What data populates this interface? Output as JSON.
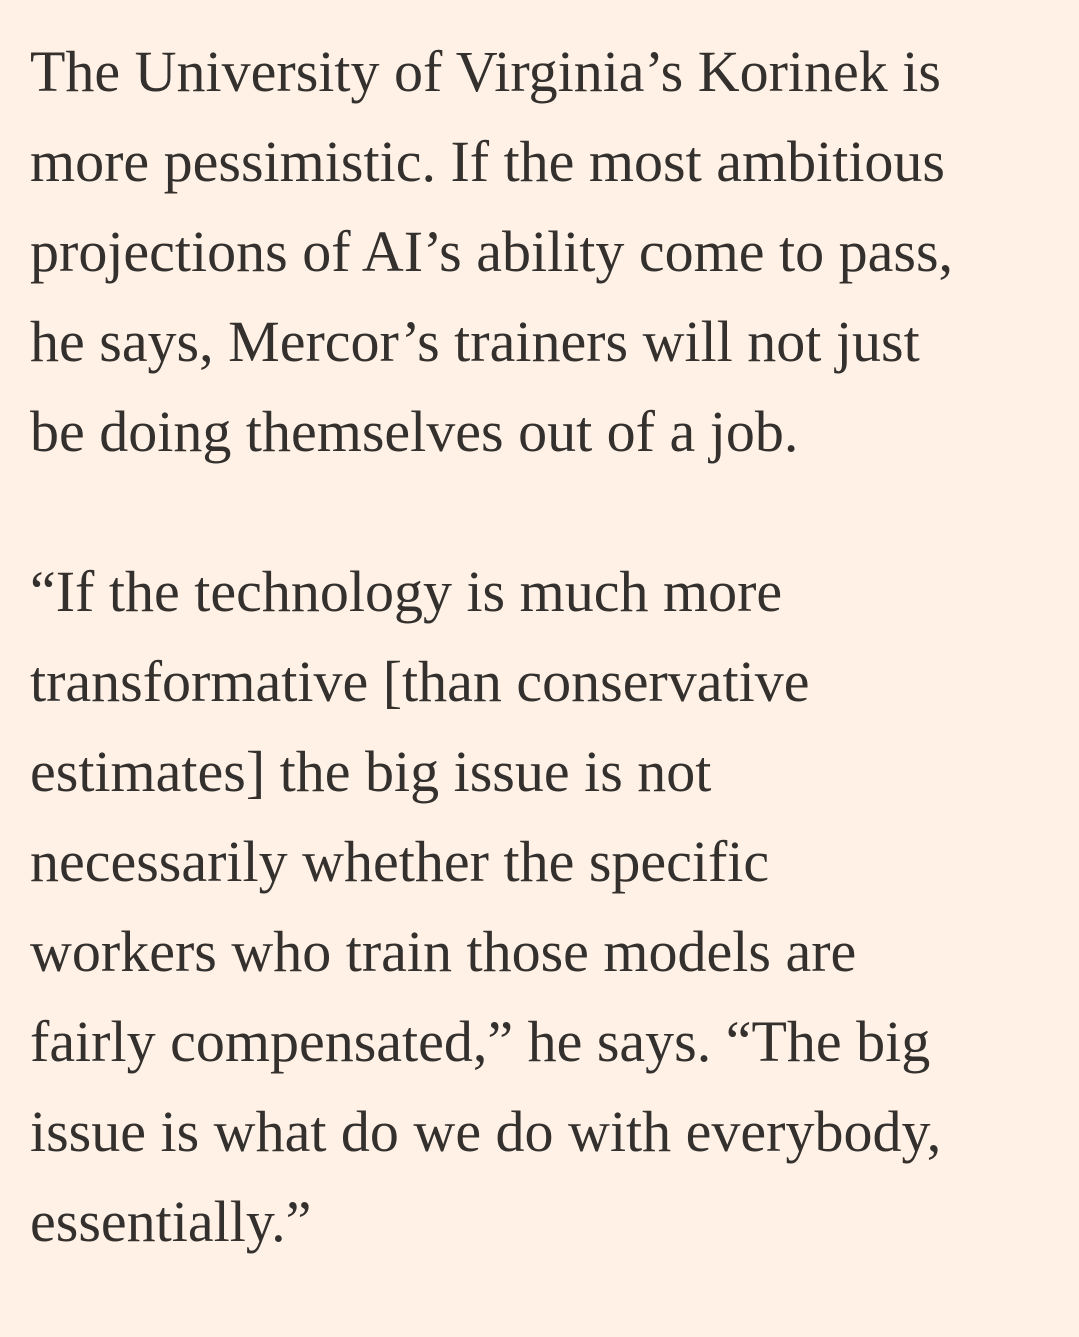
{
  "article": {
    "paragraphs": [
      {
        "lines": [
          "The University of Virginia’s Korinek is",
          "more pessimistic. If the most ambitious",
          "projections of AI’s ability come to pass,",
          "he says, Mercor’s trainers will not just",
          "be doing themselves out of a job."
        ]
      },
      {
        "lines": [
          "“If the technology is much more",
          "transformative [than conservative",
          "estimates] the big issue is not",
          "necessarily whether the specific",
          "workers who train those models are",
          "fairly compensated,” he says. “The big",
          "issue is what do we do with everybody,",
          "essentially.”"
        ]
      }
    ]
  }
}
